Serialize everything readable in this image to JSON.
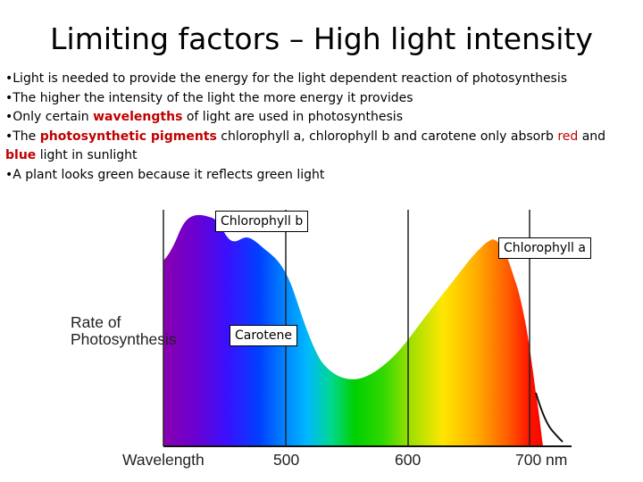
{
  "slide": {
    "title": "Limiting factors – High light intensity",
    "bullets": {
      "b1": "•Light is needed to provide the energy for the light dependent reaction of photosynthesis",
      "b2": "•The higher the intensity of the light the more energy it provides",
      "b3_pre": "•Only certain ",
      "b3_hl": "wavelengths",
      "b3_post": " of light are used in photosynthesis",
      "b4_pre": "•The ",
      "b4_hl": "photosynthetic pigments",
      "b4_mid": " chlorophyll a, chlorophyll b and carotene only absorb ",
      "b4_red": "red",
      "b4_and": " and",
      "b4_blue": "blue",
      "b4_post": " light in sunlight",
      "b5": "•A plant looks green because it reflects green light"
    }
  },
  "figure": {
    "ylabel_line1": "Rate of",
    "ylabel_line2": "Photosynthesis",
    "xlabel": "Wavelength",
    "ticks": [
      "500",
      "600",
      "700 nm"
    ],
    "labels": {
      "chlorophyll_b": "Chlorophyll b",
      "chlorophyll_a": "Chlorophyll a",
      "carotene": "Carotene"
    },
    "colors": {
      "violet": "#6a00c8",
      "blue": "#0033ff",
      "green": "#00c800",
      "yellow": "#ffe600",
      "orange": "#ff8800",
      "red": "#ee0000",
      "highlight": "#c00000"
    }
  }
}
